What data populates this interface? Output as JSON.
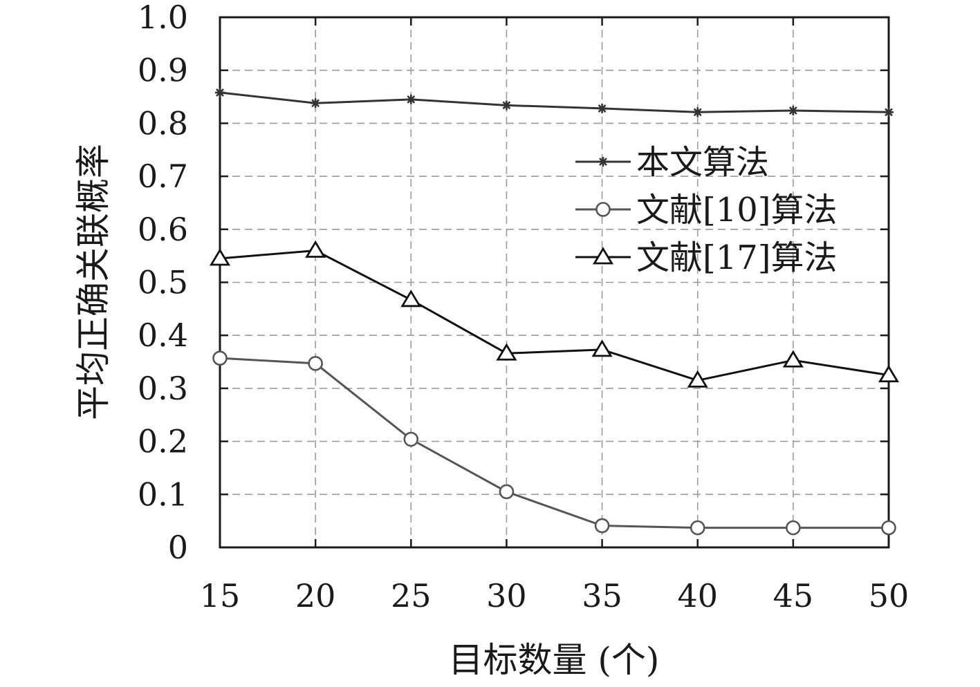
{
  "chart_data": {
    "type": "line",
    "xlabel": "目标数量 (个)",
    "ylabel": "平均正确关联概率",
    "x": [
      15,
      20,
      25,
      30,
      35,
      40,
      45,
      50
    ],
    "x_tick_labels": [
      "15",
      "20",
      "25",
      "30",
      "35",
      "40",
      "45",
      "50"
    ],
    "y_tick_labels": [
      "0",
      "0.1",
      "0.2",
      "0.3",
      "0.4",
      "0.5",
      "0.6",
      "0.7",
      "0.8",
      "0.9",
      "1.0"
    ],
    "xlim": [
      15,
      50
    ],
    "ylim": [
      0,
      1.0
    ],
    "grid": true,
    "legend_position": "top-right",
    "series": [
      {
        "name": "本文算法",
        "marker": "star",
        "color": "#333333",
        "values": [
          0.858,
          0.838,
          0.845,
          0.834,
          0.828,
          0.821,
          0.824,
          0.821
        ]
      },
      {
        "name": "文献[10]算法",
        "marker": "circle",
        "color": "#555555",
        "values": [
          0.357,
          0.347,
          0.204,
          0.105,
          0.041,
          0.037,
          0.037,
          0.037
        ]
      },
      {
        "name": "文献[17]算法",
        "marker": "triangle",
        "color": "#111111",
        "values": [
          0.545,
          0.56,
          0.467,
          0.366,
          0.373,
          0.315,
          0.353,
          0.325
        ]
      }
    ]
  }
}
